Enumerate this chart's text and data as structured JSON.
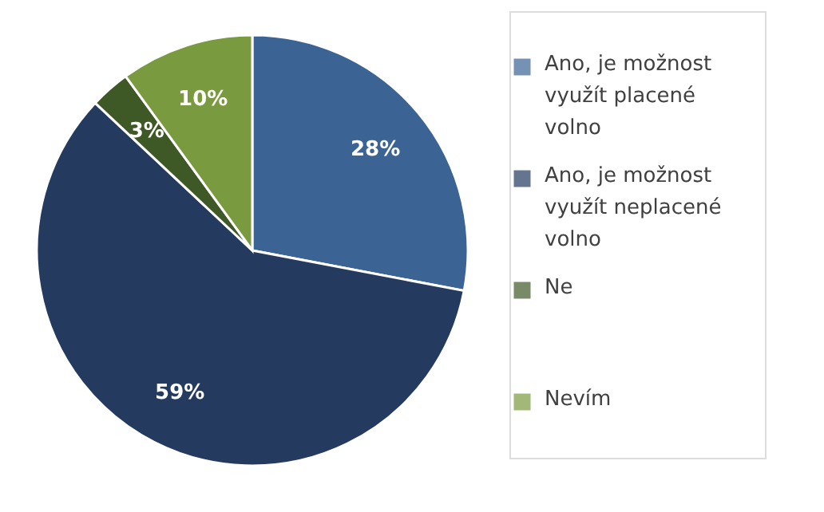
{
  "chart_data": {
    "type": "pie",
    "categories": [
      "Ano, je možnost využít placené volno",
      "Ano, je možnost využít neplacené volno",
      "Ne",
      "Nevím"
    ],
    "values": [
      28,
      59,
      3,
      10
    ],
    "colors": [
      "#3b6394",
      "#243b5f",
      "#3e5826",
      "#7a9a3f"
    ],
    "value_labels": [
      "28%",
      "59%",
      "3%",
      "10%"
    ],
    "legend": "right"
  }
}
